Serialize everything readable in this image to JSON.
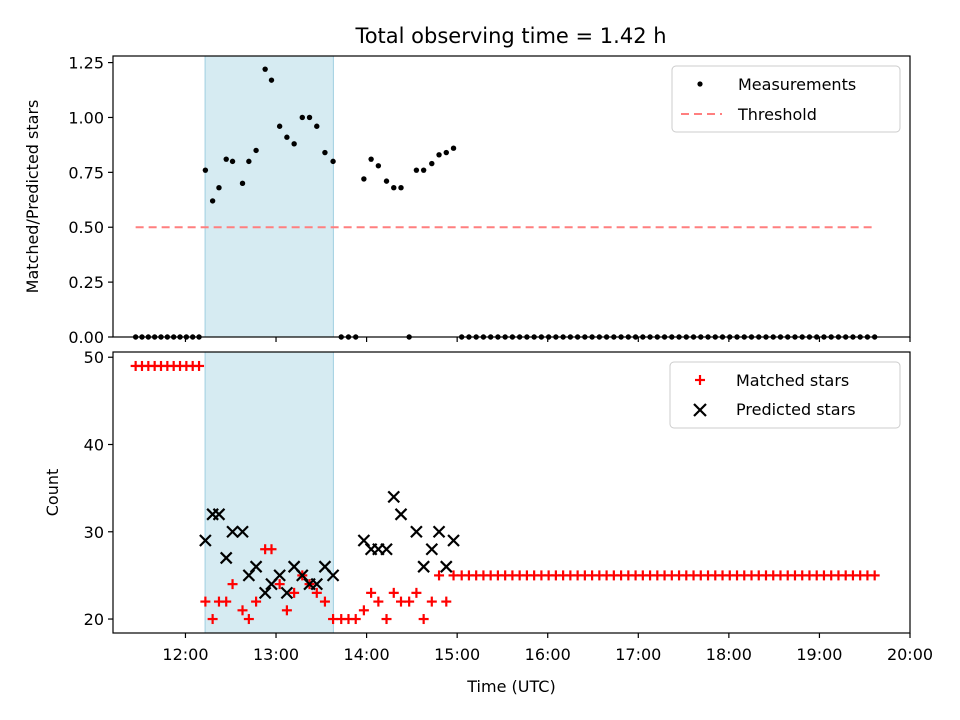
{
  "title": "Total observing time = 1.42 h",
  "chart_data": [
    {
      "type": "scatter",
      "panel": "top",
      "ylabel": "Matched/Predicted stars",
      "ylim": [
        0,
        1.28
      ],
      "yticks": [
        0,
        0.25,
        0.5,
        0.75,
        1.0,
        1.25
      ],
      "ytick_labels": [
        "0.00",
        "0.25",
        "0.50",
        "0.75",
        "1.00",
        "1.25"
      ],
      "x_units": "hours UTC",
      "xlim": [
        11.2,
        20.0
      ],
      "shaded_interval": [
        "12:13",
        "13:38"
      ],
      "shaded_color": "#add8e6",
      "legend_position": "upper right",
      "legend": [
        "Measurements",
        "Threshold"
      ],
      "threshold": {
        "name": "Threshold",
        "value": 0.5,
        "x_range": [
          11.45,
          19.62
        ],
        "color": "#ff8080",
        "style": "dashed"
      },
      "series": [
        {
          "name": "Measurements",
          "marker": "dot",
          "color": "#000000",
          "points": [
            [
              11.45,
              0
            ],
            [
              11.52,
              0
            ],
            [
              11.59,
              0
            ],
            [
              11.66,
              0
            ],
            [
              11.73,
              0
            ],
            [
              11.8,
              0
            ],
            [
              11.87,
              0
            ],
            [
              11.94,
              0
            ],
            [
              12.01,
              0
            ],
            [
              12.08,
              0
            ],
            [
              12.15,
              0
            ],
            [
              12.22,
              0.76
            ],
            [
              12.3,
              0.62
            ],
            [
              12.37,
              0.68
            ],
            [
              12.45,
              0.81
            ],
            [
              12.52,
              0.8
            ],
            [
              12.63,
              0.7
            ],
            [
              12.7,
              0.8
            ],
            [
              12.78,
              0.85
            ],
            [
              12.88,
              1.22
            ],
            [
              12.95,
              1.17
            ],
            [
              13.04,
              0.96
            ],
            [
              13.12,
              0.91
            ],
            [
              13.2,
              0.88
            ],
            [
              13.29,
              1.0
            ],
            [
              13.37,
              1.0
            ],
            [
              13.45,
              0.96
            ],
            [
              13.54,
              0.84
            ],
            [
              13.63,
              0.8
            ],
            [
              13.72,
              0
            ],
            [
              13.8,
              0
            ],
            [
              13.88,
              0
            ],
            [
              13.97,
              0.72
            ],
            [
              14.05,
              0.81
            ],
            [
              14.13,
              0.78
            ],
            [
              14.22,
              0.71
            ],
            [
              14.3,
              0.68
            ],
            [
              14.38,
              0.68
            ],
            [
              14.47,
              0
            ],
            [
              14.55,
              0.76
            ],
            [
              14.63,
              0.76
            ],
            [
              14.72,
              0.79
            ],
            [
              14.8,
              0.83
            ],
            [
              14.88,
              0.84
            ],
            [
              14.96,
              0.86
            ],
            [
              15.05,
              0
            ],
            [
              15.13,
              0
            ],
            [
              15.21,
              0
            ],
            [
              15.29,
              0
            ],
            [
              15.37,
              0
            ],
            [
              15.45,
              0
            ],
            [
              15.53,
              0
            ],
            [
              15.61,
              0
            ],
            [
              15.69,
              0
            ],
            [
              15.77,
              0
            ],
            [
              15.85,
              0
            ],
            [
              15.93,
              0
            ],
            [
              16.01,
              0
            ],
            [
              16.09,
              0
            ],
            [
              16.17,
              0
            ],
            [
              16.25,
              0
            ],
            [
              16.33,
              0
            ],
            [
              16.41,
              0
            ],
            [
              16.49,
              0
            ],
            [
              16.57,
              0
            ],
            [
              16.65,
              0
            ],
            [
              16.73,
              0
            ],
            [
              16.81,
              0
            ],
            [
              16.89,
              0
            ],
            [
              16.97,
              0
            ],
            [
              17.05,
              0
            ],
            [
              17.13,
              0
            ],
            [
              17.21,
              0
            ],
            [
              17.29,
              0
            ],
            [
              17.37,
              0
            ],
            [
              17.45,
              0
            ],
            [
              17.53,
              0
            ],
            [
              17.61,
              0
            ],
            [
              17.69,
              0
            ],
            [
              17.77,
              0
            ],
            [
              17.85,
              0
            ],
            [
              17.93,
              0
            ],
            [
              18.01,
              0
            ],
            [
              18.09,
              0
            ],
            [
              18.17,
              0
            ],
            [
              18.25,
              0
            ],
            [
              18.33,
              0
            ],
            [
              18.41,
              0
            ],
            [
              18.49,
              0
            ],
            [
              18.57,
              0
            ],
            [
              18.65,
              0
            ],
            [
              18.73,
              0
            ],
            [
              18.81,
              0
            ],
            [
              18.89,
              0
            ],
            [
              18.97,
              0
            ],
            [
              19.05,
              0
            ],
            [
              19.13,
              0
            ],
            [
              19.21,
              0
            ],
            [
              19.29,
              0
            ],
            [
              19.37,
              0
            ],
            [
              19.45,
              0
            ],
            [
              19.53,
              0
            ],
            [
              19.61,
              0
            ]
          ]
        }
      ]
    },
    {
      "type": "scatter",
      "panel": "bottom",
      "xlabel": "Time (UTC)",
      "ylabel": "Count",
      "ylim": [
        18.4,
        50.6
      ],
      "yticks": [
        20,
        30,
        40,
        50
      ],
      "ytick_labels": [
        "20",
        "30",
        "40",
        "50"
      ],
      "x_units": "hours UTC",
      "xlim": [
        11.2,
        20.0
      ],
      "xticks": [
        12,
        13,
        14,
        15,
        16,
        17,
        18,
        19,
        20
      ],
      "xtick_labels": [
        "12:00",
        "13:00",
        "14:00",
        "15:00",
        "16:00",
        "17:00",
        "18:00",
        "19:00",
        "20:00"
      ],
      "shaded_interval": [
        "12:13",
        "13:38"
      ],
      "shaded_color": "#add8e6",
      "legend_position": "upper right",
      "legend": [
        "Matched stars",
        "Predicted stars"
      ],
      "series": [
        {
          "name": "Matched stars",
          "marker": "plus",
          "color": "#ff0000",
          "points": [
            [
              11.45,
              49
            ],
            [
              11.52,
              49
            ],
            [
              11.59,
              49
            ],
            [
              11.66,
              49
            ],
            [
              11.73,
              49
            ],
            [
              11.8,
              49
            ],
            [
              11.87,
              49
            ],
            [
              11.94,
              49
            ],
            [
              12.01,
              49
            ],
            [
              12.08,
              49
            ],
            [
              12.15,
              49
            ],
            [
              12.22,
              22
            ],
            [
              12.3,
              20
            ],
            [
              12.37,
              22
            ],
            [
              12.45,
              22
            ],
            [
              12.52,
              24
            ],
            [
              12.63,
              21
            ],
            [
              12.7,
              20
            ],
            [
              12.78,
              22
            ],
            [
              12.88,
              28
            ],
            [
              12.95,
              28
            ],
            [
              13.04,
              24
            ],
            [
              13.12,
              21
            ],
            [
              13.2,
              23
            ],
            [
              13.29,
              25
            ],
            [
              13.37,
              24
            ],
            [
              13.45,
              23
            ],
            [
              13.54,
              22
            ],
            [
              13.63,
              20
            ],
            [
              13.72,
              20
            ],
            [
              13.8,
              20
            ],
            [
              13.88,
              20
            ],
            [
              13.97,
              21
            ],
            [
              14.05,
              23
            ],
            [
              14.13,
              22
            ],
            [
              14.22,
              20
            ],
            [
              14.3,
              23
            ],
            [
              14.38,
              22
            ],
            [
              14.47,
              22
            ],
            [
              14.55,
              23
            ],
            [
              14.63,
              20
            ],
            [
              14.72,
              22
            ],
            [
              14.8,
              25
            ],
            [
              14.88,
              22
            ],
            [
              14.96,
              25
            ],
            [
              15.05,
              25
            ],
            [
              15.13,
              25
            ],
            [
              15.21,
              25
            ],
            [
              15.29,
              25
            ],
            [
              15.37,
              25
            ],
            [
              15.45,
              25
            ],
            [
              15.53,
              25
            ],
            [
              15.61,
              25
            ],
            [
              15.69,
              25
            ],
            [
              15.77,
              25
            ],
            [
              15.85,
              25
            ],
            [
              15.93,
              25
            ],
            [
              16.01,
              25
            ],
            [
              16.09,
              25
            ],
            [
              16.17,
              25
            ],
            [
              16.25,
              25
            ],
            [
              16.33,
              25
            ],
            [
              16.41,
              25
            ],
            [
              16.49,
              25
            ],
            [
              16.57,
              25
            ],
            [
              16.65,
              25
            ],
            [
              16.73,
              25
            ],
            [
              16.81,
              25
            ],
            [
              16.89,
              25
            ],
            [
              16.97,
              25
            ],
            [
              17.05,
              25
            ],
            [
              17.13,
              25
            ],
            [
              17.21,
              25
            ],
            [
              17.29,
              25
            ],
            [
              17.37,
              25
            ],
            [
              17.45,
              25
            ],
            [
              17.53,
              25
            ],
            [
              17.61,
              25
            ],
            [
              17.69,
              25
            ],
            [
              17.77,
              25
            ],
            [
              17.85,
              25
            ],
            [
              17.93,
              25
            ],
            [
              18.01,
              25
            ],
            [
              18.09,
              25
            ],
            [
              18.17,
              25
            ],
            [
              18.25,
              25
            ],
            [
              18.33,
              25
            ],
            [
              18.41,
              25
            ],
            [
              18.49,
              25
            ],
            [
              18.57,
              25
            ],
            [
              18.65,
              25
            ],
            [
              18.73,
              25
            ],
            [
              18.81,
              25
            ],
            [
              18.89,
              25
            ],
            [
              18.97,
              25
            ],
            [
              19.05,
              25
            ],
            [
              19.13,
              25
            ],
            [
              19.21,
              25
            ],
            [
              19.29,
              25
            ],
            [
              19.37,
              25
            ],
            [
              19.45,
              25
            ],
            [
              19.53,
              25
            ],
            [
              19.61,
              25
            ]
          ]
        },
        {
          "name": "Predicted stars",
          "marker": "x",
          "color": "#000000",
          "points": [
            [
              12.22,
              29
            ],
            [
              12.3,
              32
            ],
            [
              12.37,
              32
            ],
            [
              12.45,
              27
            ],
            [
              12.52,
              30
            ],
            [
              12.63,
              30
            ],
            [
              12.7,
              25
            ],
            [
              12.78,
              26
            ],
            [
              12.88,
              23
            ],
            [
              12.95,
              24
            ],
            [
              13.04,
              25
            ],
            [
              13.12,
              23
            ],
            [
              13.2,
              26
            ],
            [
              13.29,
              25
            ],
            [
              13.37,
              24
            ],
            [
              13.45,
              24
            ],
            [
              13.54,
              26
            ],
            [
              13.63,
              25
            ],
            [
              13.97,
              29
            ],
            [
              14.05,
              28
            ],
            [
              14.13,
              28
            ],
            [
              14.22,
              28
            ],
            [
              14.3,
              34
            ],
            [
              14.38,
              32
            ],
            [
              14.55,
              30
            ],
            [
              14.63,
              26
            ],
            [
              14.72,
              28
            ],
            [
              14.8,
              30
            ],
            [
              14.88,
              26
            ],
            [
              14.96,
              29
            ]
          ]
        }
      ]
    }
  ]
}
